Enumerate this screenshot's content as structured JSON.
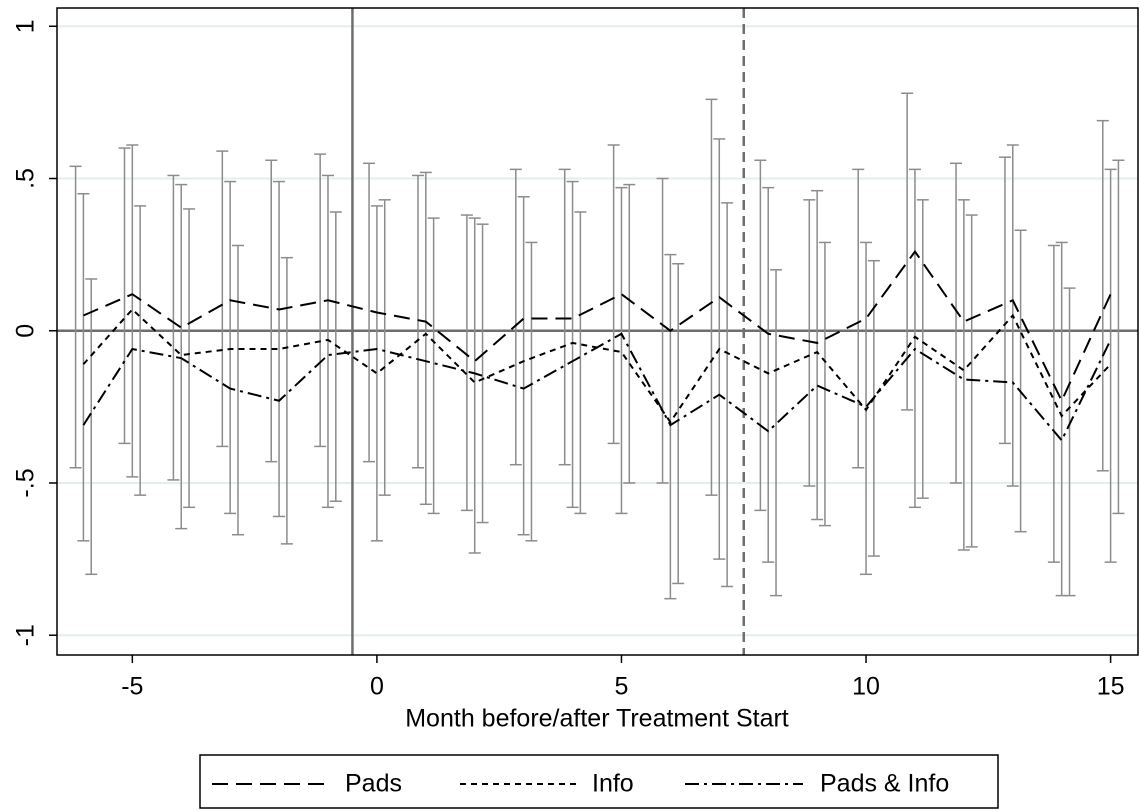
{
  "chart_data": {
    "type": "line",
    "x_label": "Month before/after Treatment Start",
    "x": [
      -6,
      -5,
      -4,
      -3,
      -2,
      -1,
      0,
      1,
      2,
      3,
      4,
      5,
      6,
      7,
      8,
      9,
      10,
      11,
      12,
      13,
      14,
      15
    ],
    "series": [
      {
        "name": "Pads",
        "color": "#000000",
        "dash": "16,8",
        "values": [
          0.05,
          0.12,
          0.01,
          0.1,
          0.07,
          0.1,
          0.06,
          0.03,
          -0.1,
          0.04,
          0.04,
          0.12,
          0.0,
          0.11,
          -0.01,
          -0.04,
          0.04,
          0.26,
          0.03,
          0.1,
          -0.23,
          0.12
        ],
        "lower": [
          -0.45,
          -0.37,
          -0.49,
          -0.38,
          -0.43,
          -0.38,
          -0.43,
          -0.45,
          -0.59,
          -0.44,
          -0.44,
          -0.37,
          -0.5,
          -0.54,
          -0.59,
          -0.51,
          -0.45,
          -0.26,
          -0.5,
          -0.37,
          -0.76,
          -0.46
        ],
        "upper": [
          0.54,
          0.6,
          0.51,
          0.59,
          0.56,
          0.58,
          0.55,
          0.51,
          0.38,
          0.53,
          0.53,
          0.61,
          0.5,
          0.76,
          0.56,
          0.43,
          0.53,
          0.78,
          0.55,
          0.57,
          0.28,
          0.69
        ]
      },
      {
        "name": "Info",
        "color": "#000000",
        "dash": "6,5",
        "values": [
          -0.11,
          0.07,
          -0.08,
          -0.06,
          -0.06,
          -0.03,
          -0.14,
          -0.01,
          -0.17,
          -0.1,
          -0.04,
          -0.07,
          -0.3,
          -0.06,
          -0.14,
          -0.07,
          -0.26,
          -0.02,
          -0.13,
          0.05,
          -0.28,
          -0.11
        ],
        "lower": [
          -0.69,
          -0.48,
          -0.65,
          -0.6,
          -0.61,
          -0.58,
          -0.69,
          -0.57,
          -0.73,
          -0.67,
          -0.58,
          -0.6,
          -0.88,
          -0.75,
          -0.76,
          -0.62,
          -0.8,
          -0.58,
          -0.72,
          -0.51,
          -0.87,
          -0.76
        ],
        "upper": [
          0.45,
          0.61,
          0.48,
          0.49,
          0.49,
          0.51,
          0.41,
          0.52,
          0.37,
          0.44,
          0.49,
          0.47,
          0.25,
          0.63,
          0.47,
          0.46,
          0.29,
          0.53,
          0.43,
          0.61,
          0.29,
          0.53
        ]
      },
      {
        "name": "Pads & Info",
        "color": "#000000",
        "dash": "14,5,3,5",
        "values": [
          -0.31,
          -0.06,
          -0.09,
          -0.19,
          -0.23,
          -0.08,
          -0.06,
          -0.1,
          -0.14,
          -0.19,
          -0.1,
          -0.01,
          -0.31,
          -0.21,
          -0.33,
          -0.18,
          -0.25,
          -0.06,
          -0.16,
          -0.17,
          -0.36,
          -0.03
        ],
        "lower": [
          -0.8,
          -0.54,
          -0.58,
          -0.67,
          -0.7,
          -0.56,
          -0.54,
          -0.6,
          -0.63,
          -0.69,
          -0.6,
          -0.5,
          -0.83,
          -0.84,
          -0.87,
          -0.64,
          -0.74,
          -0.55,
          -0.71,
          -0.66,
          -0.87,
          -0.6
        ],
        "upper": [
          0.17,
          0.41,
          0.4,
          0.28,
          0.24,
          0.39,
          0.43,
          0.37,
          0.35,
          0.29,
          0.39,
          0.48,
          0.22,
          0.42,
          0.2,
          0.29,
          0.23,
          0.43,
          0.38,
          0.33,
          0.14,
          0.56
        ]
      }
    ],
    "errorbar_color": "#8c8c8c",
    "xlim": [
      -6.54,
      15.56
    ],
    "ylim": [
      -1.065,
      1.06
    ],
    "xticks": [
      -5,
      0,
      5,
      10,
      15
    ],
    "yticks": [
      1,
      {
        "value": 0.5,
        "label": ".5"
      },
      0,
      {
        "value": -0.5,
        "label": "-.5"
      },
      -1
    ],
    "grid": true,
    "hline": 0,
    "vlines": [
      {
        "x": -0.5,
        "dash": "none"
      },
      {
        "x": 7.5,
        "dash": "10,6"
      }
    ],
    "legend": "bottom"
  }
}
